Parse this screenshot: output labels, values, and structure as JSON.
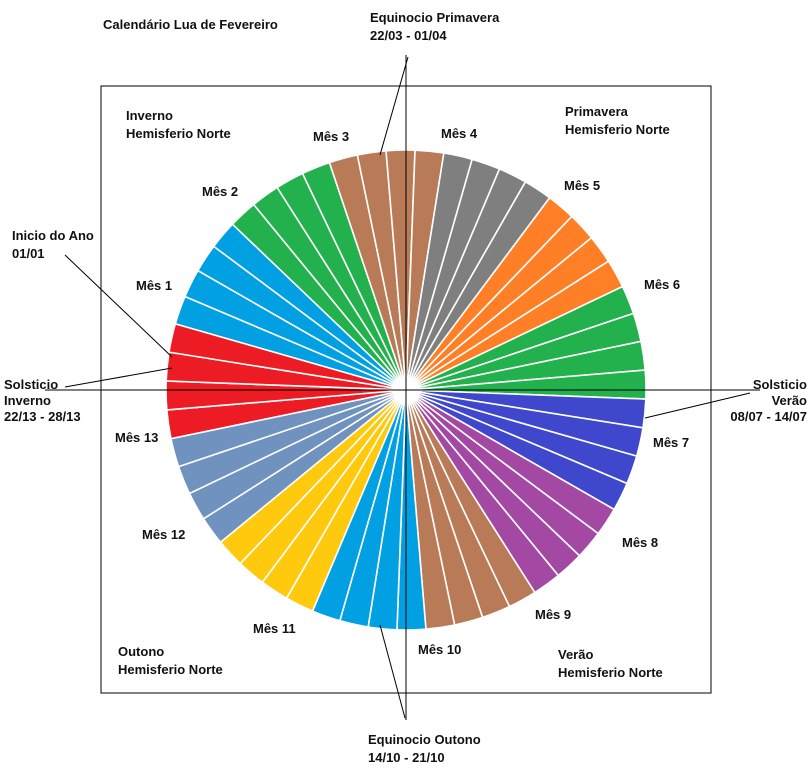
{
  "title": "Calendário Lua de Fevereiro",
  "circle_start_offset_deg": 0,
  "seasons": [
    {
      "name": "Inverno",
      "sub": "Hemisferio Norte"
    },
    {
      "name": "Primavera",
      "sub": "Hemisferio Norte"
    },
    {
      "name": "Outono",
      "sub": "Hemisferio Norte"
    },
    {
      "name": "Verão",
      "sub": "Hemisferio Norte"
    }
  ],
  "markers": {
    "equinox_spring": {
      "title": "Equinocio Primavera",
      "dates": "22/03 - 01/04"
    },
    "equinox_autumn": {
      "title": "Equinocio Outono",
      "dates": "14/10 - 21/10"
    },
    "solstice_winter": {
      "line1": "Solsticio",
      "line2": "Inverno",
      "dates": "22/13 - 28/13"
    },
    "solstice_summer": {
      "line1": "Solsticio",
      "line2": "Verão",
      "dates": "08/07 - 14/07"
    },
    "year_start": {
      "title": "Inicio do Ano",
      "date": "01/01"
    }
  },
  "months": [
    {
      "label": "Mês 1",
      "color": "#00a0e3"
    },
    {
      "label": "Mês 2",
      "color": "#22b14c"
    },
    {
      "label": "Mês 3",
      "color": "#b97a57"
    },
    {
      "label": "Mês 4",
      "color": "#7f7f7f"
    },
    {
      "label": "Mês 5",
      "color": "#ff7f27"
    },
    {
      "label": "Mês 6",
      "color": "#22b14c"
    },
    {
      "label": "Mês 7",
      "color": "#3f48cc"
    },
    {
      "label": "Mês 8",
      "color": "#a349a4"
    },
    {
      "label": "Mês 9",
      "color": "#b97a57"
    },
    {
      "label": "Mês 10",
      "color": "#00a0e3"
    },
    {
      "label": "Mês 11",
      "color": "#ffc90e"
    },
    {
      "label": "Mês 12",
      "color": "#7092be"
    },
    {
      "label": "Mês 13",
      "color": "#ed1c24"
    }
  ]
}
